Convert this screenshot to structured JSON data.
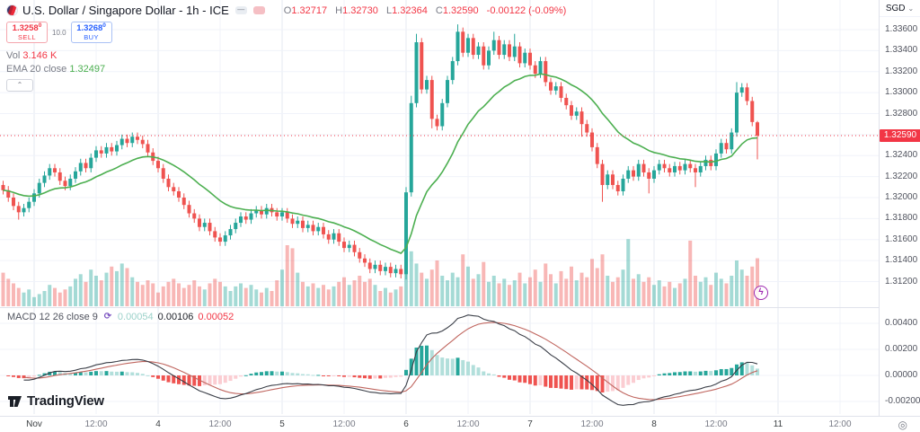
{
  "symbol": {
    "title": "U.S. Dollar / Singapore Dollar - 1h - ICE"
  },
  "legend_icons": {
    "minimize": "—"
  },
  "ohlc": {
    "o_label": "O",
    "o": "1.32717",
    "h_label": "H",
    "h": "1.32730",
    "l_label": "L",
    "l": "1.32364",
    "c_label": "C",
    "c": "1.32590",
    "change": "-0.00122 (-0.09%)"
  },
  "trade": {
    "sell_price": "1.3258",
    "sell_sup": "0",
    "sell_label": "SELL",
    "spread": "10.0",
    "buy_price": "1.3268",
    "buy_sup": "0",
    "buy_label": "BUY"
  },
  "volume_legend": {
    "label": "Vol",
    "value": "3.146 K"
  },
  "ema_legend": {
    "label": "EMA 20 close",
    "value": "1.32497"
  },
  "macd_legend": {
    "label": "MACD 12 26 close 9",
    "hist": "0.00054",
    "macd": "0.00106",
    "signal": "0.00052"
  },
  "price_axis": {
    "currency": "SGD",
    "caret": "⌄",
    "tick_values": [
      1.336,
      1.334,
      1.332,
      1.33,
      1.328,
      1.324,
      1.322,
      1.32,
      1.318,
      1.316,
      1.314,
      1.312
    ],
    "decimals": 5,
    "tag_label": "1.32590",
    "tag_value": 1.3259
  },
  "macd_axis": {
    "tick_values": [
      0.004,
      0.002,
      0,
      -0.002
    ],
    "labels": [
      "0.00400",
      "0.00200",
      "0.00000",
      "-0.00200"
    ]
  },
  "time_axis": {
    "ticks": [
      {
        "label": "Nov",
        "i": 6,
        "day": true
      },
      {
        "label": "12:00",
        "i": 18
      },
      {
        "label": "4",
        "i": 30,
        "day": true
      },
      {
        "label": "12:00",
        "i": 42
      },
      {
        "label": "5",
        "i": 54,
        "day": true
      },
      {
        "label": "12:00",
        "i": 66
      },
      {
        "label": "6",
        "i": 78,
        "day": true
      },
      {
        "label": "12:00",
        "i": 90
      },
      {
        "label": "7",
        "i": 102,
        "day": true
      },
      {
        "label": "12:00",
        "i": 114
      },
      {
        "label": "8",
        "i": 126,
        "day": true
      },
      {
        "label": "12:00",
        "i": 138
      },
      {
        "label": "11",
        "i": 150,
        "day": true
      },
      {
        "label": "12:00",
        "i": 162
      }
    ]
  },
  "logo_text": "TradingView",
  "corner_icon": "◎",
  "bolt_icon": "ϟ",
  "refresh_icon": "⟳",
  "colors": {
    "up": "#26a69a",
    "down": "#ef5350",
    "ema": "#4caf50",
    "macd_line": "#3a3e47",
    "signal_line": "#c0665f",
    "hist_up": "#26a69a",
    "hist_up_fade": "#b2dfdb",
    "hist_down": "#ef5350",
    "hist_down_fade": "#fbcdd2",
    "grid": "#f0f3fa",
    "grid_day": "#e4e8f0",
    "separator": "#e0e3eb",
    "tag_bg": "#f23645",
    "price_line": "#f23645"
  },
  "chart_data": {
    "type": "candlestick+volume+macd",
    "pair": "USD/SGD",
    "interval": "1h",
    "exchange": "ICE",
    "opens_rule": "previous close",
    "first_open": 1.3212,
    "default_wick": 0.0004,
    "ema_period": 20,
    "macd_params": [
      12,
      26,
      9
    ],
    "view_high": 1.3365,
    "view_low": 1.311,
    "closes": [
      1.3207,
      1.32,
      1.3192,
      1.3186,
      1.319,
      1.3196,
      1.3204,
      1.3214,
      1.3221,
      1.3228,
      1.3224,
      1.3216,
      1.3211,
      1.3218,
      1.3225,
      1.3233,
      1.3228,
      1.3238,
      1.3245,
      1.3242,
      1.3248,
      1.3244,
      1.325,
      1.3256,
      1.3252,
      1.3258,
      1.3255,
      1.3251,
      1.3243,
      1.3235,
      1.3228,
      1.3218,
      1.321,
      1.3206,
      1.32,
      1.3193,
      1.3185,
      1.318,
      1.3172,
      1.3176,
      1.3168,
      1.3162,
      1.3158,
      1.3164,
      1.317,
      1.3176,
      1.3182,
      1.3179,
      1.3185,
      1.3188,
      1.3184,
      1.319,
      1.3186,
      1.3182,
      1.3186,
      1.318,
      1.3175,
      1.3178,
      1.3171,
      1.3174,
      1.3168,
      1.3172,
      1.3165,
      1.316,
      1.3166,
      1.3158,
      1.3152,
      1.3155,
      1.3148,
      1.3142,
      1.3138,
      1.3132,
      1.3136,
      1.313,
      1.3134,
      1.3128,
      1.3132,
      1.3127,
      1.3205,
      1.329,
      1.3348,
      1.3303,
      1.3312,
      1.3275,
      1.3268,
      1.329,
      1.3312,
      1.333,
      1.3358,
      1.3338,
      1.3352,
      1.3336,
      1.3344,
      1.3326,
      1.334,
      1.335,
      1.3336,
      1.3346,
      1.3334,
      1.3344,
      1.3328,
      1.3338,
      1.3326,
      1.3318,
      1.333,
      1.331,
      1.3302,
      1.3306,
      1.3295,
      1.3288,
      1.3278,
      1.3282,
      1.327,
      1.3262,
      1.3248,
      1.3232,
      1.3212,
      1.3222,
      1.3212,
      1.3206,
      1.3218,
      1.3226,
      1.322,
      1.3232,
      1.3224,
      1.3218,
      1.3226,
      1.3232,
      1.3228,
      1.3224,
      1.323,
      1.3226,
      1.3232,
      1.3228,
      1.3224,
      1.323,
      1.3236,
      1.323,
      1.3242,
      1.3252,
      1.3246,
      1.3262,
      1.33,
      1.3305,
      1.3292,
      1.3272,
      1.3259
    ],
    "volumes_k": [
      2.2,
      1.8,
      1.5,
      1.2,
      0.9,
      1.1,
      0.6,
      0.8,
      1.0,
      1.4,
      1.2,
      0.9,
      1.1,
      1.3,
      1.8,
      2.1,
      1.6,
      2.4,
      2.0,
      1.7,
      2.2,
      2.6,
      2.3,
      2.8,
      2.5,
      1.9,
      1.6,
      1.4,
      1.7,
      1.5,
      0.9,
      1.3,
      1.6,
      1.8,
      1.5,
      1.2,
      1.4,
      1.7,
      1.3,
      1.1,
      1.5,
      1.8,
      1.6,
      1.3,
      1.0,
      1.3,
      1.5,
      1.2,
      1.4,
      1.1,
      0.9,
      1.2,
      1.0,
      1.7,
      2.4,
      4.0,
      3.8,
      2.2,
      1.6,
      1.3,
      1.5,
      1.2,
      1.4,
      1.1,
      1.3,
      1.6,
      1.9,
      1.4,
      1.7,
      2.0,
      1.6,
      1.8,
      1.4,
      1.0,
      1.2,
      0.9,
      1.1,
      1.3,
      3.2,
      3.6,
      2.8,
      2.2,
      1.8,
      2.4,
      3.0,
      2.0,
      1.7,
      2.2,
      1.9,
      3.4,
      2.6,
      1.8,
      2.1,
      2.9,
      1.6,
      2.0,
      1.5,
      1.8,
      1.4,
      1.7,
      2.2,
      1.5,
      1.9,
      2.4,
      1.6,
      2.8,
      2.1,
      1.5,
      2.3,
      1.8,
      2.6,
      1.7,
      2.2,
      1.9,
      3.1,
      2.5,
      3.4,
      2.0,
      1.6,
      1.9,
      2.4,
      4.4,
      1.8,
      2.1,
      1.6,
      1.9,
      1.4,
      1.7,
      1.3,
      1.6,
      1.2,
      1.5,
      1.8,
      4.3,
      2.0,
      1.6,
      1.9,
      1.4,
      2.2,
      1.8,
      1.5,
      2.0,
      3.0,
      2.4,
      2.0,
      2.6,
      3.146
    ],
    "overrides": {
      "3": {
        "l": 1.3179
      },
      "26": {
        "h": 1.3262
      },
      "78": {
        "h": 1.321,
        "l": 1.3122
      },
      "79": {
        "h": 1.3297
      },
      "80": {
        "h": 1.3356
      },
      "83": {
        "l": 1.3266
      },
      "88": {
        "h": 1.3365
      },
      "95": {
        "h": 1.3358
      },
      "99": {
        "h": 1.3356
      },
      "112": {
        "l": 1.3258
      },
      "116": {
        "l": 1.3196
      },
      "125": {
        "l": 1.3204
      },
      "134": {
        "l": 1.321
      },
      "142": {
        "h": 1.331
      },
      "146": {
        "o": 1.32717,
        "h": 1.3273,
        "l": 1.32364,
        "c": 1.3259
      }
    }
  }
}
